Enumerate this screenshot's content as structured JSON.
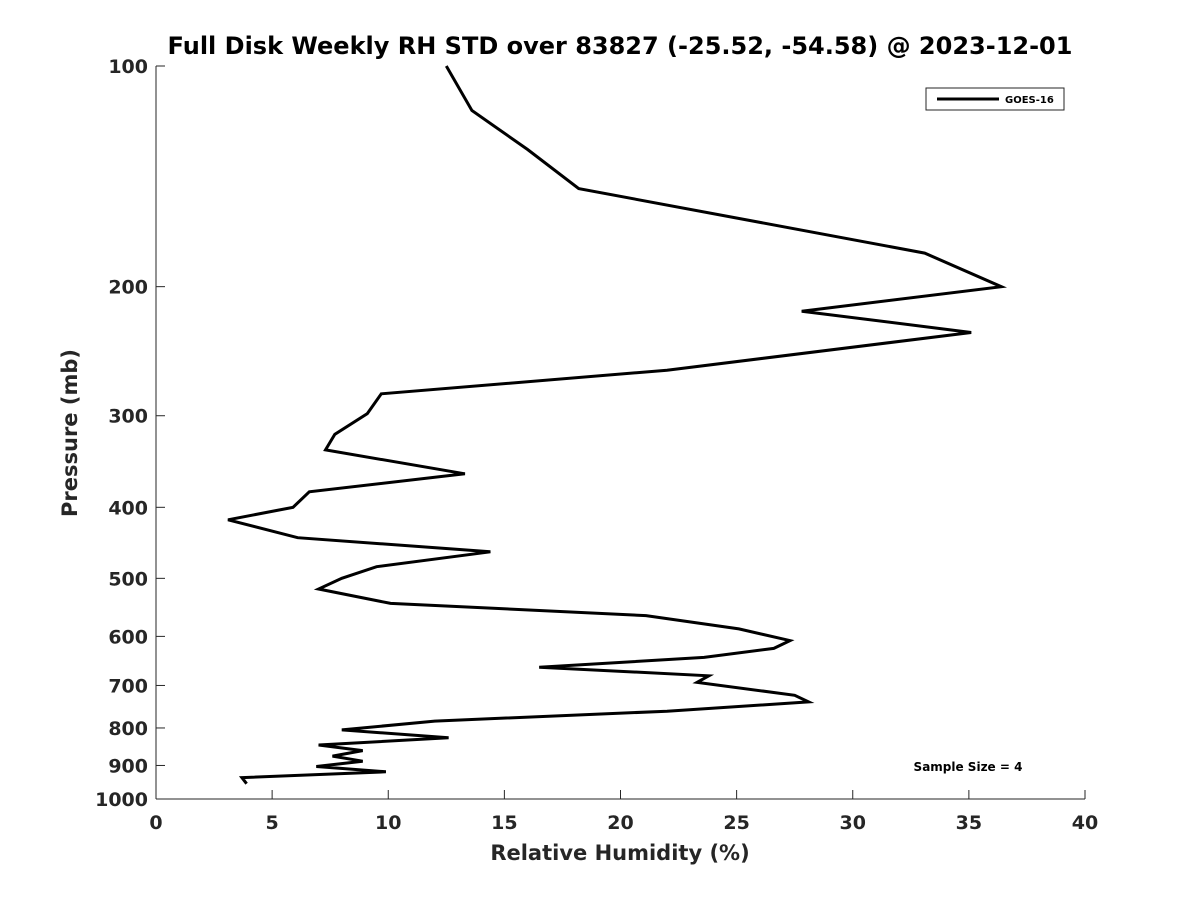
{
  "chart_data": {
    "type": "line",
    "title": "Full Disk Weekly RH STD over 83827 (-25.52, -54.58) @ 2023-12-01",
    "xlabel": "Relative Humidity (%)",
    "ylabel": "Pressure (mb)",
    "xlim": [
      0,
      40
    ],
    "ylim": [
      100,
      1000
    ],
    "yscale": "log",
    "y_reversed": true,
    "x_ticks": [
      0,
      5,
      10,
      15,
      20,
      25,
      30,
      35,
      40
    ],
    "y_ticks": [
      100,
      200,
      300,
      400,
      500,
      600,
      700,
      800,
      900,
      1000
    ],
    "grid": false,
    "legend_position": "top-right",
    "annotation": "Sample Size = 4",
    "series": [
      {
        "name": "GOES-16",
        "color": "#000000",
        "x": [
          12.5,
          13.6,
          16.0,
          18.2,
          33.1,
          36.4,
          27.8,
          35.1,
          22.0,
          9.7,
          9.1,
          7.7,
          7.3,
          13.3,
          6.6,
          5.9,
          3.1,
          6.1,
          14.4,
          9.5,
          8.0,
          7.0,
          10.1,
          21.1,
          25.1,
          27.3,
          26.6,
          23.6,
          16.5,
          23.8,
          23.3,
          27.5,
          28.1,
          22.0,
          12.0,
          8.0,
          12.6,
          7.0,
          8.9,
          7.6,
          8.9,
          6.9,
          9.9,
          3.7,
          3.9
        ],
        "y": [
          100,
          115,
          130,
          147,
          180,
          200,
          216,
          231,
          260,
          280,
          298,
          318,
          334,
          360,
          381,
          400,
          416,
          440,
          460,
          482,
          500,
          517,
          541,
          562,
          586,
          608,
          623,
          641,
          661,
          679,
          693,
          722,
          737,
          759,
          783,
          805,
          825,
          844,
          859,
          874,
          888,
          903,
          918,
          935,
          953
        ]
      }
    ]
  }
}
